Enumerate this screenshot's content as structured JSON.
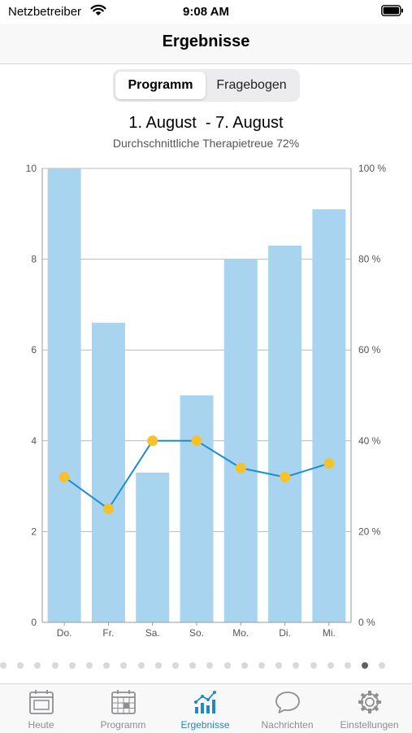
{
  "status_bar": {
    "carrier": "Netzbetreiber",
    "time": "9:08 AM",
    "icons": [
      "wifi-icon",
      "battery-icon"
    ]
  },
  "header": {
    "title": "Ergebnisse"
  },
  "segmented": {
    "options": [
      "Programm",
      "Fragebogen"
    ],
    "selected": "Programm"
  },
  "summary": {
    "date_range": "1. August  - 7. August",
    "adherence_text": "Durchschnittliche Therapietreue 72%"
  },
  "chart_data": {
    "type": "bar",
    "categories": [
      "Do.",
      "Fr.",
      "Sa.",
      "So.",
      "Mo.",
      "Di.",
      "Mi."
    ],
    "series": [
      {
        "type": "bar",
        "axis": "left",
        "values": [
          10,
          6.6,
          3.3,
          5,
          8,
          8.3,
          9.1
        ],
        "color": "#a9d4ef"
      },
      {
        "type": "line",
        "axis": "right",
        "values": [
          32,
          25,
          40,
          40,
          34,
          32,
          35
        ],
        "line_color": "#1a8fd0",
        "marker_color": "#f6c22b"
      }
    ],
    "y_left": {
      "min": 0,
      "max": 10,
      "ticks": [
        "0",
        "2",
        "4",
        "6",
        "8",
        "10"
      ]
    },
    "y_right": {
      "min": 0,
      "max": 100,
      "ticks": [
        "0 %",
        "20 %",
        "40 %",
        "60 %",
        "80 %",
        "100 %"
      ]
    },
    "grid": true
  },
  "pager": {
    "count": 23,
    "active": 21
  },
  "tab_bar": {
    "items": [
      {
        "label": "Heute",
        "icon": "calendar-day-icon",
        "active": false
      },
      {
        "label": "Programm",
        "icon": "calendar-grid-icon",
        "active": false
      },
      {
        "label": "Ergebnisse",
        "icon": "chart-icon",
        "active": true
      },
      {
        "label": "Nachrichten",
        "icon": "speech-bubble-icon",
        "active": false
      },
      {
        "label": "Einstellungen",
        "icon": "gear-icon",
        "active": false
      }
    ],
    "active_color": "#2487c9",
    "inactive_color": "#8e8e93"
  }
}
